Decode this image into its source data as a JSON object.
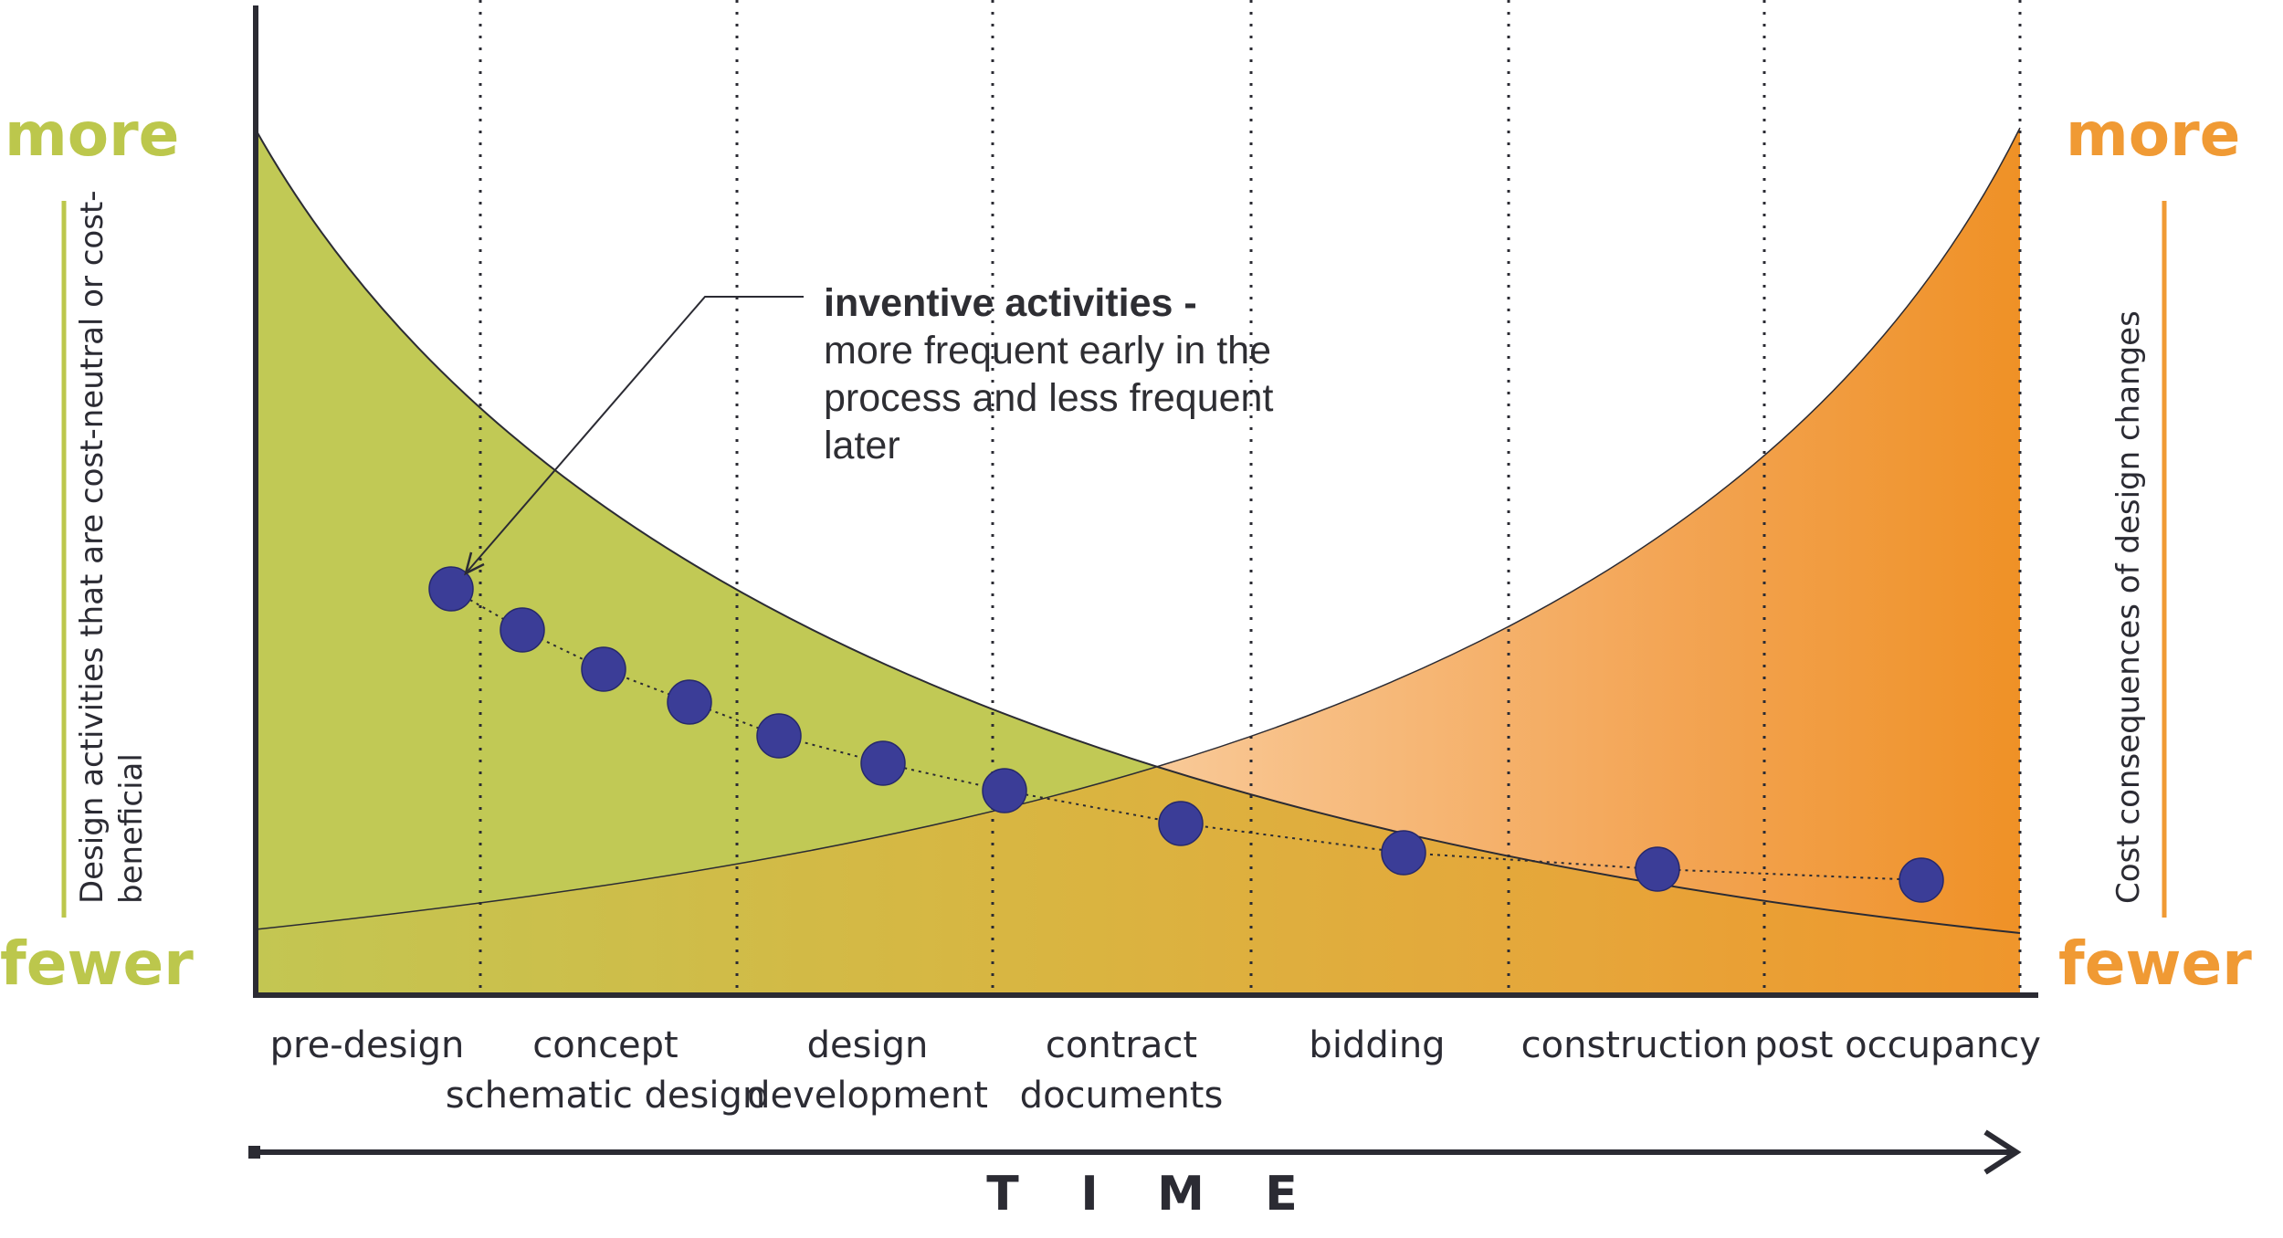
{
  "left_axis": {
    "top_label": "more",
    "bottom_label": "fewer",
    "description_line1": "Design activities that are cost-neutral or cost-",
    "description_line2": "beneficial",
    "color": "#bcc74c"
  },
  "right_axis": {
    "top_label": "more",
    "bottom_label": "fewer",
    "description": "Cost consequences of design changes",
    "color": "#f09a34"
  },
  "phases": [
    {
      "line1": "pre-design",
      "line2": ""
    },
    {
      "line1": "concept",
      "line2": "schematic design"
    },
    {
      "line1": "design",
      "line2": "development"
    },
    {
      "line1": "contract",
      "line2": "documents"
    },
    {
      "line1": "bidding",
      "line2": ""
    },
    {
      "line1": "construction",
      "line2": ""
    },
    {
      "line1": "post occupancy",
      "line2": ""
    }
  ],
  "time_axis": {
    "label": [
      "T",
      "I",
      "M",
      "E"
    ]
  },
  "annotation": {
    "title": "inventive activities",
    "dash": " -",
    "lines": [
      "more frequent early in the",
      "process and less frequent",
      "later"
    ]
  },
  "colors": {
    "green_area": "#c1c955",
    "orange_area": "#f0952d",
    "dots": "#3b3d97",
    "ink": "#2b2b33"
  }
}
